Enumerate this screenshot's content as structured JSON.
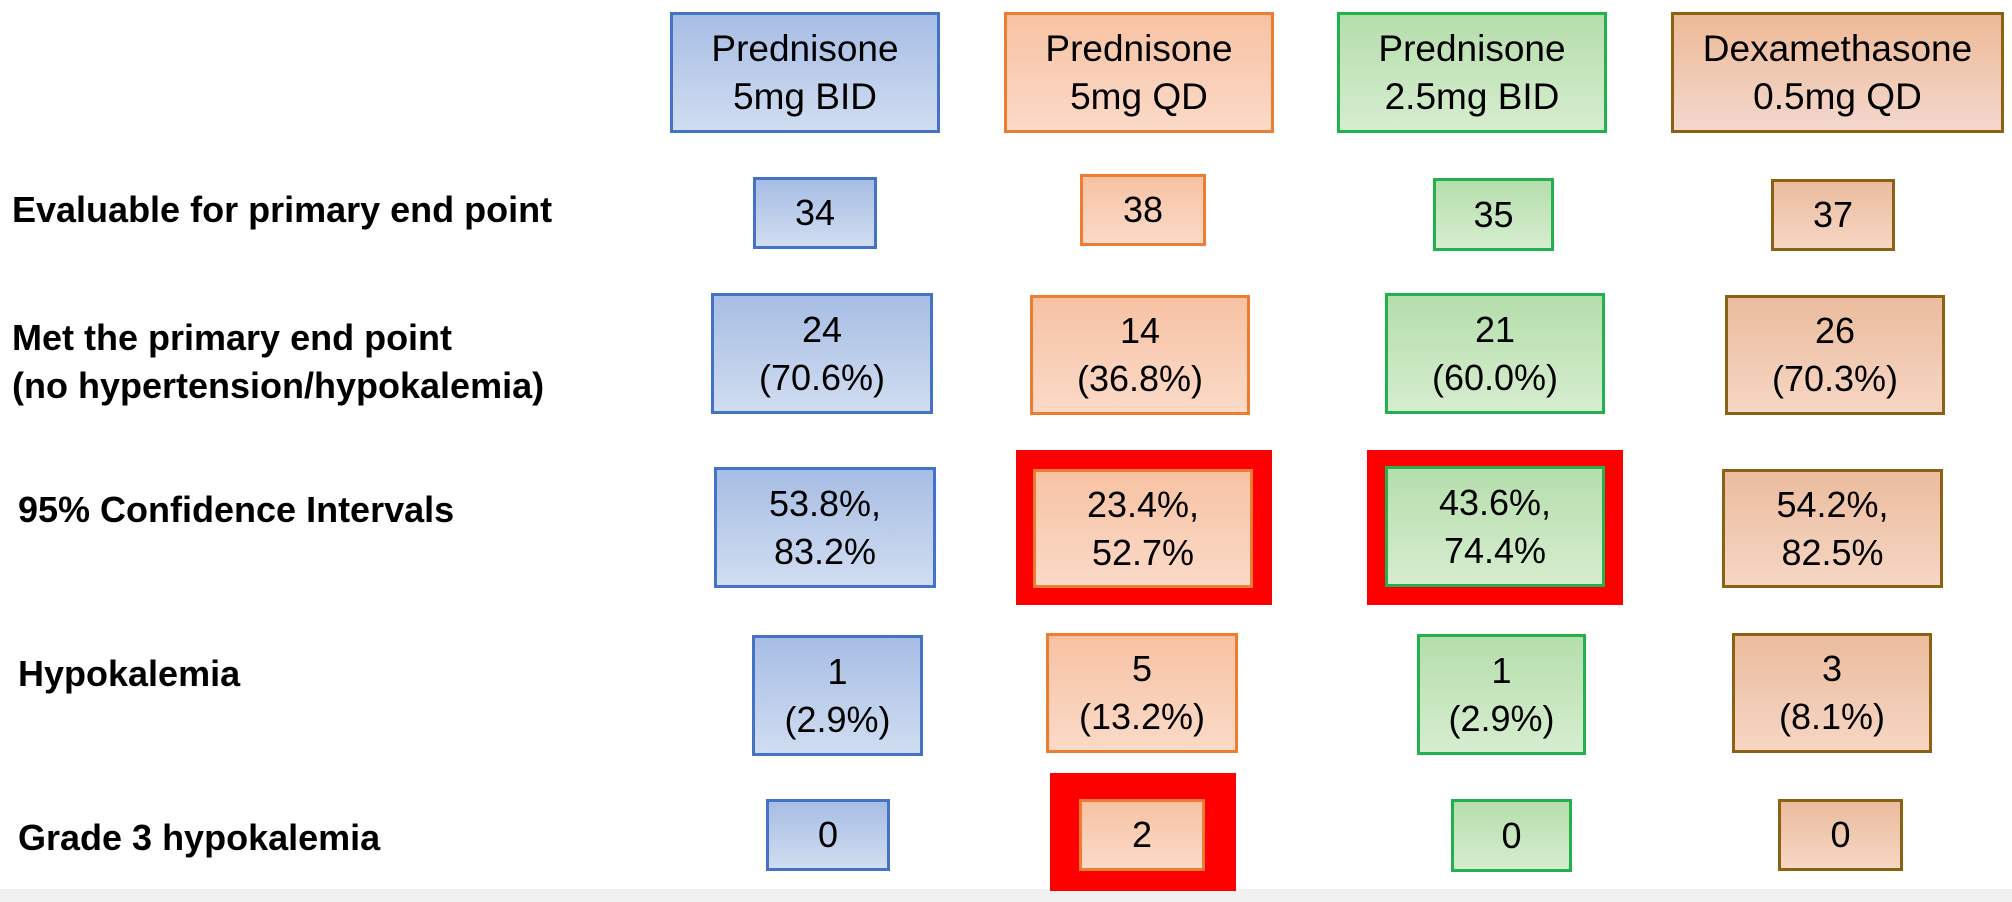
{
  "headers": [
    {
      "line1": "Prednisone",
      "line2": "5mg BID"
    },
    {
      "line1": "Prednisone",
      "line2": "5mg QD"
    },
    {
      "line1": "Prednisone",
      "line2": "2.5mg BID"
    },
    {
      "line1": "Dexamethasone",
      "line2": "0.5mg QD"
    }
  ],
  "rows": [
    {
      "label": "Evaluable for primary end point",
      "cells": [
        "34",
        "38",
        "35",
        "37"
      ]
    },
    {
      "label": "Met the primary end point\n(no hypertension/hypokalemia)",
      "cells": [
        "24\n(70.6%)",
        "14\n(36.8%)",
        "21\n(60.0%)",
        "26\n(70.3%)"
      ]
    },
    {
      "label": "95% Confidence Intervals",
      "cells": [
        "53.8%,\n83.2%",
        "23.4%,\n52.7%",
        "43.6%,\n74.4%",
        "54.2%,\n82.5%"
      ]
    },
    {
      "label": "Hypokalemia",
      "cells": [
        "1\n(2.9%)",
        "5\n(13.2%)",
        "1\n(2.9%)",
        "3\n(8.1%)"
      ]
    },
    {
      "label": "Grade 3 hypokalemia",
      "cells": [
        "0",
        "2",
        "0",
        "0"
      ]
    }
  ],
  "colors": {
    "blue_border": "#4472c4",
    "orange_border": "#ed7d31",
    "green_border": "#22b14c",
    "brown_border": "#8b6213",
    "highlight": "#ff0000"
  }
}
